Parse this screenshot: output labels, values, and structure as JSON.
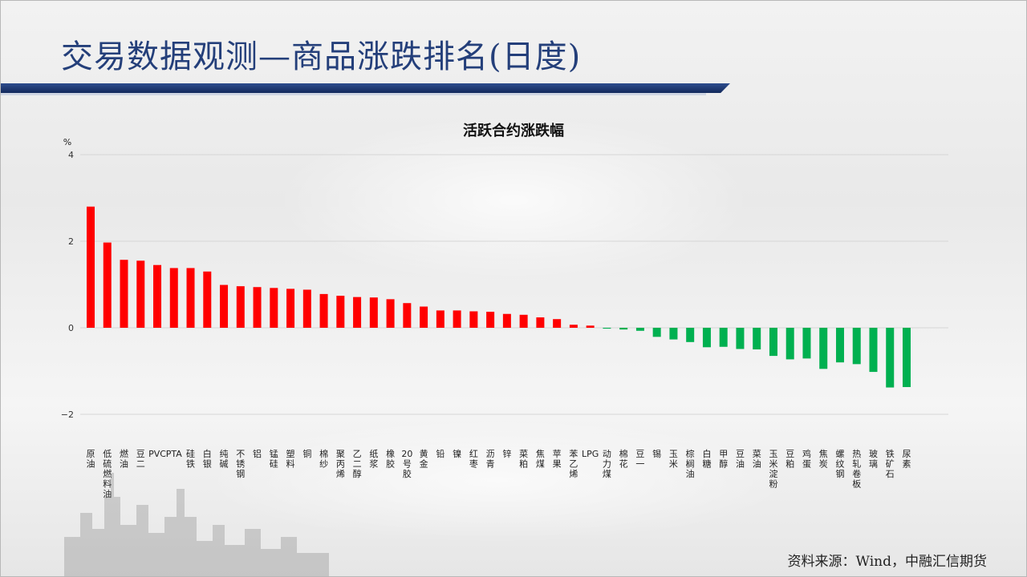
{
  "page": {
    "title": "交易数据观测—商品涨跌排名(日度)",
    "source": "资料来源：Wind，中融汇信期货"
  },
  "chart_data": {
    "type": "bar",
    "title": "活跃合约涨跌幅",
    "ylabel": "%",
    "ylim": [
      -2.6,
      4
    ],
    "yticks": [
      4,
      2,
      0,
      -2
    ],
    "grid": true,
    "legend": "none",
    "positive_color": "#ff0000",
    "negative_color": "#00b050",
    "categories": [
      "原油",
      "低硫燃料油",
      "燃油",
      "豆二",
      "PVC",
      "PTA",
      "硅铁",
      "白银",
      "纯碱",
      "不锈钢",
      "铝",
      "锰硅",
      "塑料",
      "铜",
      "棉纱",
      "聚丙烯",
      "乙二醇",
      "纸浆",
      "橡胶",
      "20号胶",
      "黄金",
      "铅",
      "镍",
      "红枣",
      "沥青",
      "锌",
      "菜粕",
      "焦煤",
      "苹果",
      "苯乙烯",
      "LPG",
      "动力煤",
      "棉花",
      "豆一",
      "锡",
      "玉米",
      "棕榈油",
      "白糖",
      "甲醇",
      "豆油",
      "菜油",
      "玉米淀粉",
      "豆粕",
      "鸡蛋",
      "焦炭",
      "螺纹钢",
      "热轧卷板",
      "玻璃",
      "铁矿石",
      "尿素"
    ],
    "values": [
      2.8,
      1.97,
      1.57,
      1.55,
      1.45,
      1.38,
      1.38,
      1.3,
      0.99,
      0.96,
      0.94,
      0.92,
      0.9,
      0.88,
      0.78,
      0.74,
      0.71,
      0.7,
      0.66,
      0.57,
      0.49,
      0.4,
      0.4,
      0.38,
      0.37,
      0.32,
      0.3,
      0.24,
      0.2,
      0.07,
      0.05,
      -0.02,
      -0.04,
      -0.07,
      -0.21,
      -0.27,
      -0.33,
      -0.45,
      -0.44,
      -0.49,
      -0.5,
      -0.65,
      -0.73,
      -0.71,
      -0.95,
      -0.8,
      -0.84,
      -1.02,
      -1.38,
      -1.37
    ]
  }
}
